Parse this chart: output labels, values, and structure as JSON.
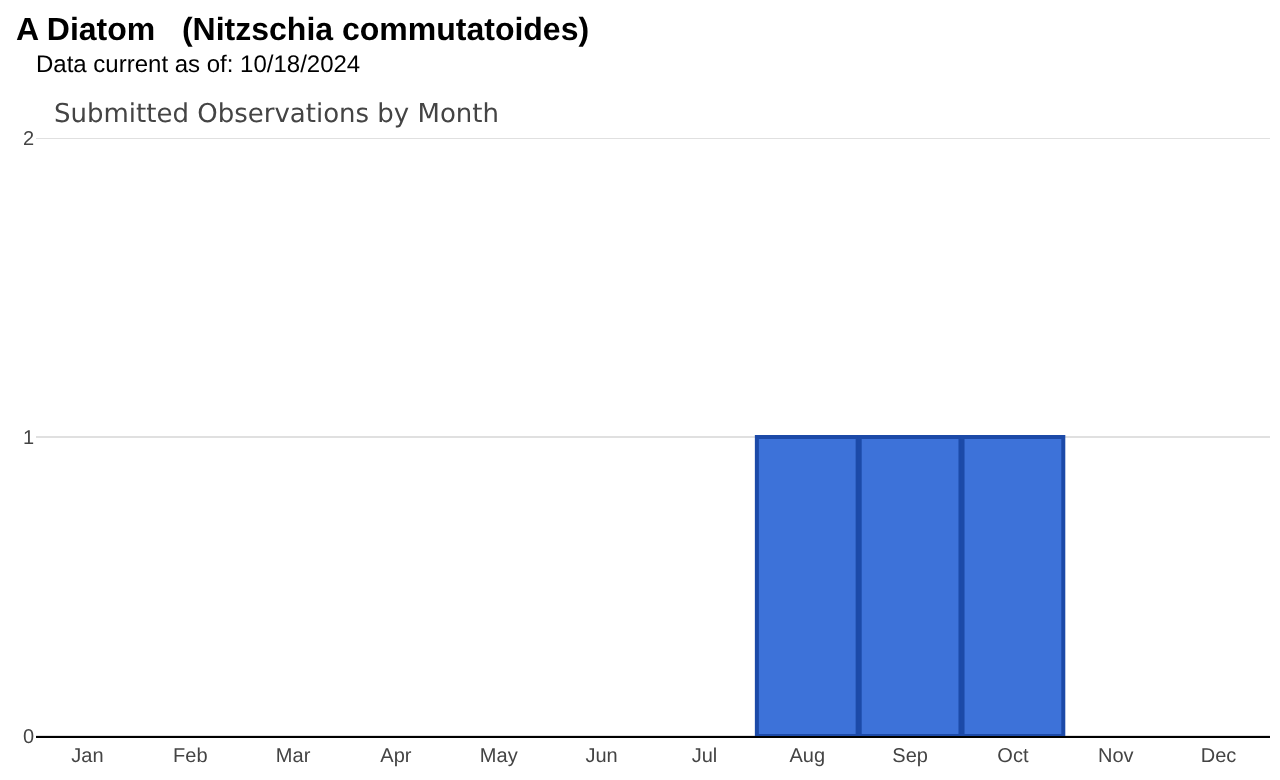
{
  "chart_data": {
    "type": "bar",
    "title": "A Diatom   (Nitzschia commutatoides)",
    "subtitle": "Data current as of: 10/18/2024",
    "annotations": [
      "Submitted Observations by Month"
    ],
    "categories": [
      "Jan",
      "Feb",
      "Mar",
      "Apr",
      "May",
      "Jun",
      "Jul",
      "Aug",
      "Sep",
      "Oct",
      "Nov",
      "Dec"
    ],
    "values": [
      0,
      0,
      0,
      0,
      0,
      0,
      0,
      1,
      1,
      1,
      0,
      0
    ],
    "color": "#3d72d9",
    "ylim": [
      0,
      2
    ],
    "yticks": [
      0,
      1,
      2
    ],
    "grid": "y",
    "legend": false
  }
}
